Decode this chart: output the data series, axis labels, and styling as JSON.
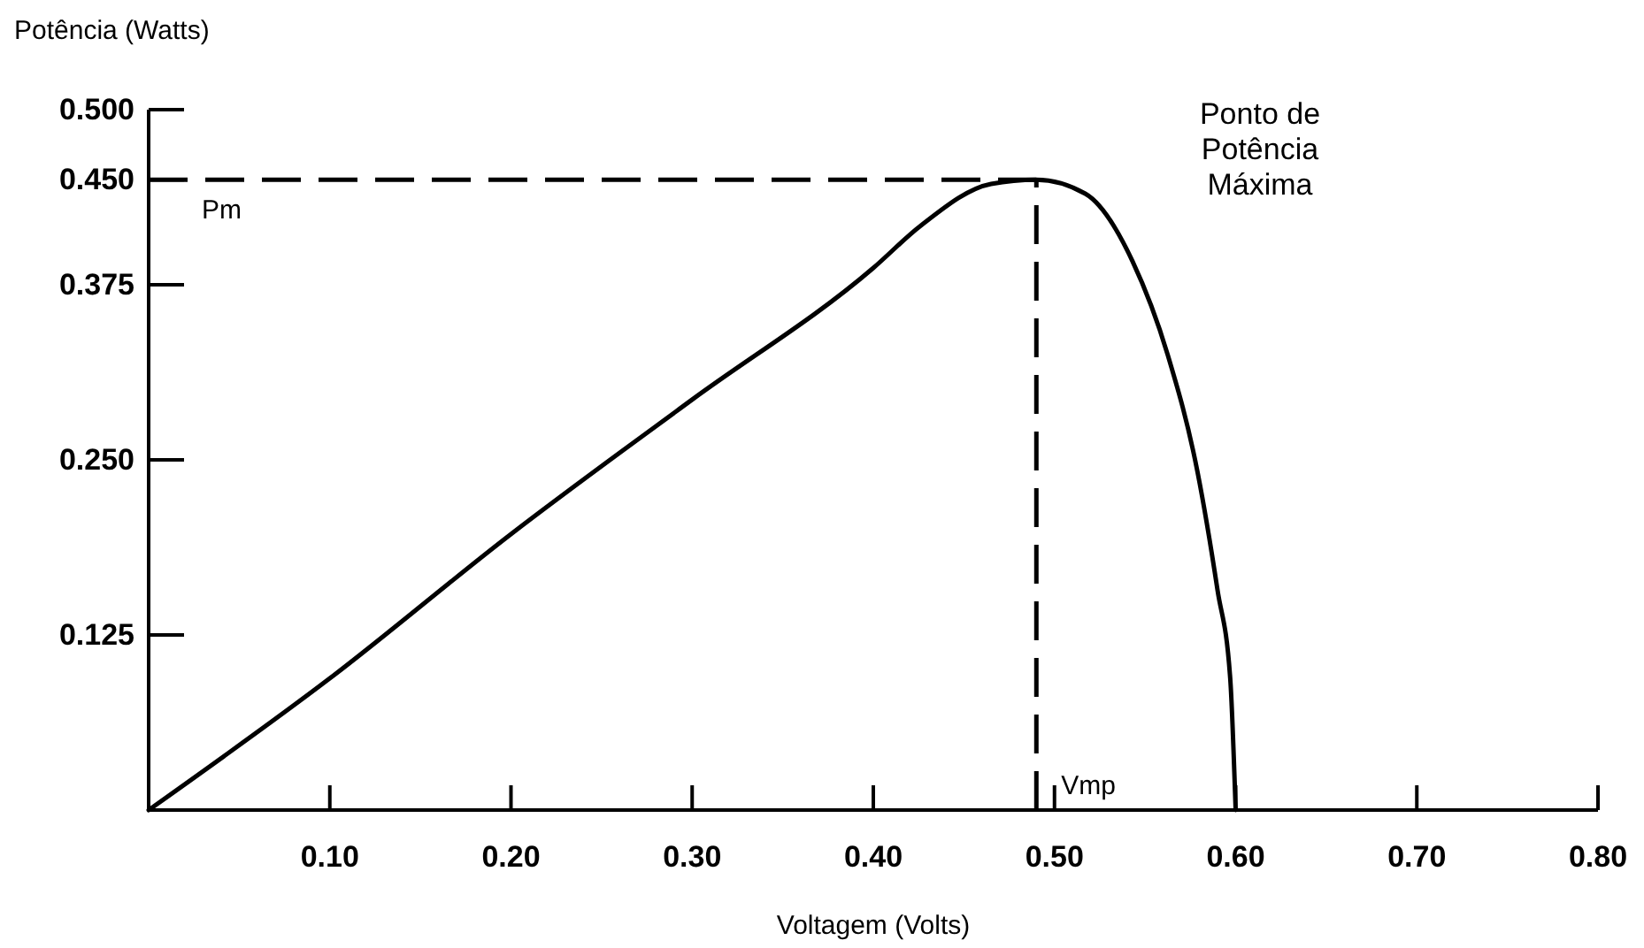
{
  "chart_data": {
    "type": "line",
    "xlabel": "Voltagem (Volts)",
    "ylabel": "Potência (Watts)",
    "xlim": [
      0,
      0.8
    ],
    "xticks": [
      {
        "value": 0.1,
        "label": "0.10"
      },
      {
        "value": 0.2,
        "label": "0.20"
      },
      {
        "value": 0.3,
        "label": "0.30"
      },
      {
        "value": 0.4,
        "label": "0.40"
      },
      {
        "value": 0.5,
        "label": "0.50"
      },
      {
        "value": 0.6,
        "label": "0.60"
      },
      {
        "value": 0.7,
        "label": "0.70"
      },
      {
        "value": 0.8,
        "label": "0.80"
      }
    ],
    "ylim": [
      0,
      0.5
    ],
    "yticks": [
      {
        "value": 0.125,
        "label": "0.125"
      },
      {
        "value": 0.25,
        "label": "0.250"
      },
      {
        "value": 0.375,
        "label": "0.375"
      },
      {
        "value": 0.45,
        "label": "0.450"
      },
      {
        "value": 0.5,
        "label": "0.500"
      }
    ],
    "grid": false,
    "marker": "none",
    "line_style": "solid",
    "series": [
      {
        "color": "#000000",
        "x": [
          0,
          0.1,
          0.2,
          0.3,
          0.4,
          0.426,
          0.465,
          0.49,
          0.517,
          0.543,
          0.5625,
          0.579,
          0.59,
          0.597,
          0.6
        ],
        "values": [
          0,
          0.094,
          0.197,
          0.293,
          0.387,
          0.417,
          0.447,
          0.45,
          0.44,
          0.392,
          0.325,
          0.241,
          0.157,
          0.094,
          0
        ]
      }
    ],
    "ref_lines": [
      {
        "axis": "y",
        "value": 0.45,
        "label": "Pm",
        "line_style": "dashed",
        "color": "#000000"
      },
      {
        "axis": "x",
        "value": 0.49,
        "label": "Vmp",
        "line_style": "dashed",
        "color": "#000000"
      }
    ],
    "annotations": [
      "Ponto de Potência Máxima"
    ]
  }
}
